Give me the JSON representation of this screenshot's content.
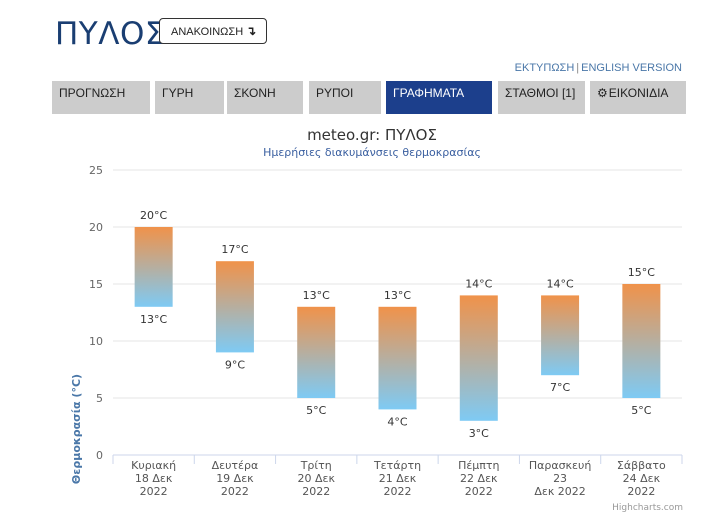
{
  "header": {
    "title": "ΠΥΛΟΣ",
    "announcements_label": "ΑΝΑΚΟΙΝΩΣΗ",
    "announcements_icon": "curved-down-arrow-icon"
  },
  "util_links": {
    "print": "ΕΚΤΥΠΩΣΗ",
    "separator": "|",
    "english": "ENGLISH VERSION"
  },
  "nav": {
    "tabs": [
      {
        "label": "ΠΡΟΓΝΩΣΗ",
        "active": false
      },
      {
        "label": "ΓΥΡΗ",
        "active": false
      },
      {
        "label": "ΣΚΟΝΗ",
        "active": false
      },
      {
        "label": "ΡΥΠΟΙ",
        "active": false
      },
      {
        "label": "ΓΡΑΦΗΜΑΤΑ",
        "active": true
      },
      {
        "label": "ΣΤΑΘΜΟΙ [1]",
        "active": false
      },
      {
        "label": "ΕΙΚΟΝΙΔΙΑ",
        "active": false,
        "icon": "gear-icon"
      }
    ]
  },
  "chart_data": {
    "type": "bar",
    "subtype": "columnrange",
    "title": "meteo.gr: ΠΥΛΟΣ",
    "subtitle": "Ημερήσιες διακυμάνσεις θερμοκρασίας",
    "ylabel": "Θερμοκρασία (°C)",
    "xlabel": "",
    "ylim": [
      0,
      25
    ],
    "yticks": [
      0,
      5,
      10,
      15,
      20,
      25
    ],
    "grid": true,
    "legend": "none",
    "unit": "°C",
    "categories": [
      [
        "Κυριακή",
        "18 Δεκ",
        "2022"
      ],
      [
        "Δευτέρα",
        "19 Δεκ",
        "2022"
      ],
      [
        "Τρίτη",
        "20 Δεκ",
        "2022"
      ],
      [
        "Τετάρτη",
        "21 Δεκ",
        "2022"
      ],
      [
        "Πέμπτη",
        "22 Δεκ",
        "2022"
      ],
      [
        "Παρασκευή",
        "23",
        "Δεκ 2022"
      ],
      [
        "Σάββατο",
        "24 Δεκ",
        "2022"
      ]
    ],
    "series": [
      {
        "low": [
          13,
          9,
          5,
          4,
          3,
          7,
          5
        ],
        "high": [
          20,
          17,
          13,
          13,
          14,
          14,
          15
        ]
      }
    ],
    "colors": {
      "top": "#f0924a",
      "bottom": "#7ecaf4",
      "grid": "#e6e6e6",
      "axis_title": "#4a77a8",
      "title": "#333333",
      "subtitle": "#3a5fa0"
    },
    "credits": "Highcharts.com"
  }
}
